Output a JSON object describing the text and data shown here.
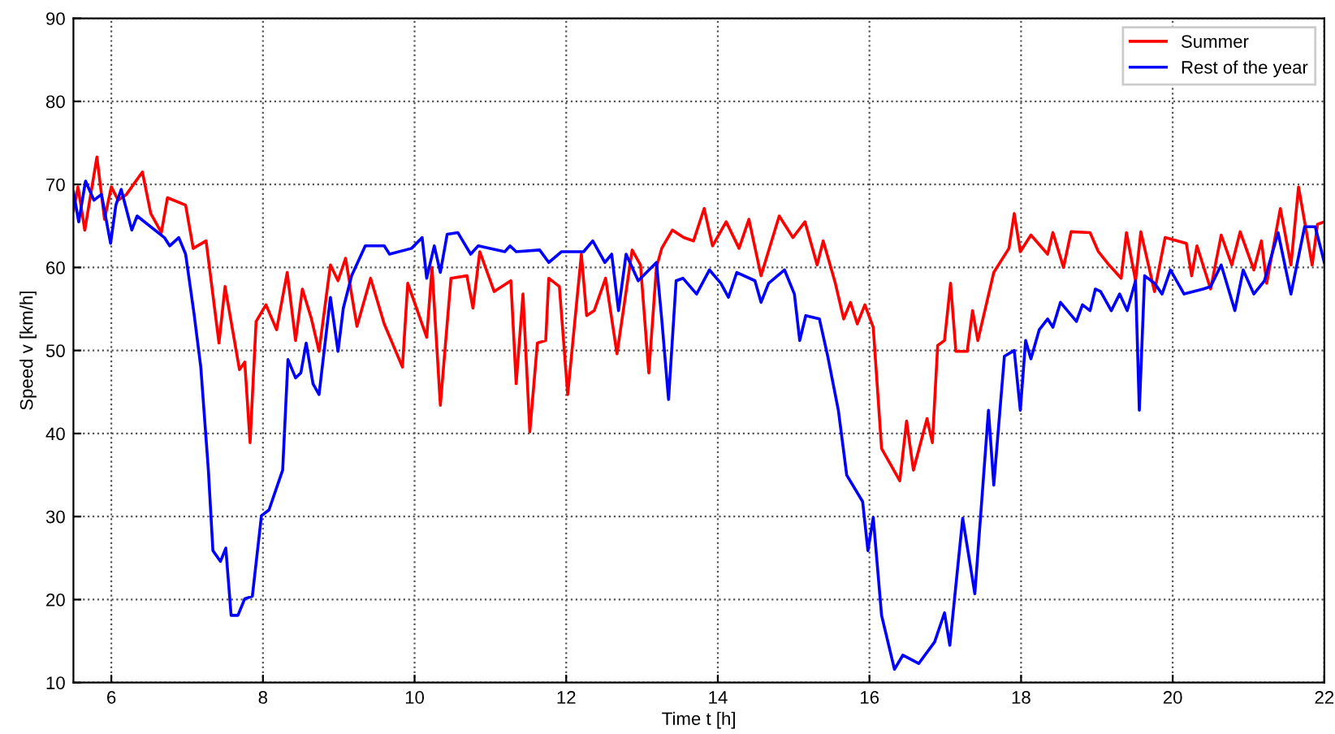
{
  "chart_data": {
    "type": "line",
    "xlabel": "Time t [h]",
    "ylabel": "Speed v [km/h]",
    "xlim": [
      5.5,
      22
    ],
    "xticks": [
      6,
      8,
      10,
      12,
      14,
      16,
      18,
      20,
      22
    ],
    "ylim": [
      10,
      90
    ],
    "yticks": [
      10,
      20,
      30,
      40,
      50,
      60,
      70,
      80,
      90
    ],
    "grid": true,
    "legend": "top right",
    "line_style": "solid",
    "series": [
      {
        "name": "Summer",
        "color": "#ff0000",
        "x": [
          5.5,
          5.56,
          5.65,
          5.81,
          5.91,
          6.0,
          6.09,
          6.2,
          6.41,
          6.52,
          6.66,
          6.74,
          6.98,
          7.08,
          7.25,
          7.42,
          7.5,
          7.69,
          7.76,
          7.83,
          7.91,
          8.04,
          8.18,
          8.32,
          8.43,
          8.52,
          8.64,
          8.74,
          8.89,
          8.99,
          9.09,
          9.24,
          9.42,
          9.6,
          9.84,
          9.91,
          10.16,
          10.23,
          10.34,
          10.48,
          10.69,
          10.77,
          10.86,
          11.05,
          11.27,
          11.34,
          11.43,
          11.52,
          11.62,
          11.73,
          11.77,
          11.91,
          12.02,
          12.2,
          12.27,
          12.37,
          12.52,
          12.67,
          12.87,
          12.98,
          13.09,
          13.19,
          13.26,
          13.4,
          13.55,
          13.68,
          13.82,
          13.93,
          14.11,
          14.28,
          14.41,
          14.57,
          14.81,
          14.99,
          15.15,
          15.31,
          15.39,
          15.55,
          15.66,
          15.75,
          15.84,
          15.94,
          16.05,
          16.16,
          16.4,
          16.49,
          16.58,
          16.76,
          16.83,
          16.9,
          16.99,
          17.07,
          17.14,
          17.29,
          17.36,
          17.43,
          17.64,
          17.84,
          17.91,
          17.99,
          18.13,
          18.35,
          18.42,
          18.56,
          18.66,
          18.91,
          19.02,
          19.16,
          19.32,
          19.39,
          19.51,
          19.58,
          19.76,
          19.9,
          20.18,
          20.25,
          20.32,
          20.5,
          20.64,
          20.78,
          20.89,
          21.07,
          21.17,
          21.24,
          21.42,
          21.56,
          21.66,
          21.84,
          21.91,
          22.0
        ],
        "values": [
          66.8,
          69.7,
          64.5,
          73.3,
          65.8,
          69.7,
          68.1,
          68.8,
          71.5,
          66.5,
          64.2,
          68.4,
          67.5,
          62.3,
          63.2,
          50.9,
          57.7,
          47.7,
          48.6,
          38.9,
          53.5,
          55.5,
          52.5,
          59.4,
          51.2,
          57.4,
          53.8,
          49.9,
          60.3,
          58.4,
          61.1,
          52.9,
          58.7,
          53.2,
          48.0,
          58.1,
          51.6,
          60.0,
          43.4,
          58.7,
          59.0,
          55.1,
          61.9,
          57.1,
          58.4,
          46.0,
          56.8,
          40.2,
          50.9,
          51.2,
          58.7,
          57.7,
          44.7,
          61.6,
          54.2,
          54.8,
          58.7,
          49.6,
          62.1,
          60.3,
          47.3,
          60.0,
          62.3,
          64.5,
          63.6,
          63.2,
          67.1,
          62.6,
          65.5,
          62.3,
          65.8,
          59.0,
          66.2,
          63.6,
          65.5,
          60.3,
          63.2,
          58.1,
          53.8,
          55.8,
          53.2,
          55.5,
          52.8,
          38.2,
          34.3,
          41.5,
          35.6,
          41.8,
          38.9,
          50.6,
          51.2,
          58.1,
          49.9,
          49.9,
          54.8,
          51.2,
          59.4,
          62.3,
          66.5,
          61.9,
          63.9,
          61.6,
          64.2,
          60.0,
          64.3,
          64.2,
          61.9,
          60.3,
          58.7,
          64.2,
          58.4,
          64.3,
          57.1,
          63.6,
          62.9,
          59.0,
          62.6,
          57.4,
          63.9,
          60.3,
          64.3,
          59.7,
          63.2,
          58.1,
          67.1,
          60.3,
          69.7,
          60.3,
          65.2,
          65.5
        ]
      },
      {
        "name": "Rest of the year",
        "color": "#0000ff",
        "x": [
          5.5,
          5.57,
          5.66,
          5.77,
          5.87,
          5.99,
          6.06,
          6.13,
          6.27,
          6.34,
          6.7,
          6.77,
          6.89,
          6.98,
          7.09,
          7.18,
          7.28,
          7.34,
          7.44,
          7.51,
          7.58,
          7.67,
          7.76,
          7.86,
          7.98,
          8.08,
          8.26,
          8.33,
          8.43,
          8.5,
          8.57,
          8.66,
          8.74,
          8.89,
          8.99,
          9.06,
          9.17,
          9.35,
          9.6,
          9.67,
          9.96,
          10.1,
          10.16,
          10.26,
          10.34,
          10.43,
          10.57,
          10.74,
          10.84,
          11.19,
          11.26,
          11.34,
          11.65,
          11.77,
          11.94,
          12.23,
          12.35,
          12.51,
          12.6,
          12.69,
          12.79,
          12.95,
          13.19,
          13.26,
          13.35,
          13.45,
          13.54,
          13.72,
          13.89,
          14.04,
          14.14,
          14.25,
          14.49,
          14.57,
          14.67,
          14.88,
          15.01,
          15.08,
          15.16,
          15.34,
          15.45,
          15.59,
          15.7,
          15.91,
          15.98,
          16.05,
          16.16,
          16.33,
          16.44,
          16.65,
          16.86,
          16.99,
          17.06,
          17.23,
          17.39,
          17.57,
          17.64,
          17.78,
          17.91,
          17.99,
          18.06,
          18.13,
          18.24,
          18.35,
          18.42,
          18.52,
          18.73,
          18.81,
          18.91,
          18.98,
          19.05,
          19.19,
          19.3,
          19.4,
          19.51,
          19.56,
          19.63,
          19.76,
          19.86,
          19.97,
          20.15,
          20.4,
          20.5,
          20.64,
          20.82,
          20.93,
          21.07,
          21.21,
          21.39,
          21.56,
          21.74,
          21.88,
          22.0
        ],
        "values": [
          69.1,
          65.5,
          70.4,
          68.1,
          68.8,
          62.9,
          67.5,
          69.4,
          64.5,
          66.2,
          63.6,
          62.6,
          63.6,
          61.6,
          54.5,
          48.0,
          35.6,
          25.9,
          24.6,
          26.2,
          18.1,
          18.1,
          20.1,
          20.4,
          30.1,
          30.8,
          35.6,
          48.9,
          46.7,
          47.3,
          50.9,
          46.0,
          44.7,
          56.4,
          49.9,
          55.1,
          59.0,
          62.6,
          62.6,
          61.6,
          62.3,
          63.6,
          58.7,
          62.6,
          59.4,
          64.0,
          64.2,
          61.6,
          62.6,
          61.9,
          62.6,
          61.9,
          62.1,
          60.6,
          61.9,
          61.9,
          63.2,
          60.6,
          61.6,
          54.8,
          61.6,
          58.4,
          60.6,
          53.8,
          44.1,
          58.4,
          58.7,
          56.8,
          59.7,
          58.1,
          56.4,
          59.4,
          58.4,
          55.8,
          58.1,
          59.7,
          56.8,
          51.2,
          54.2,
          53.8,
          49.3,
          42.8,
          35.0,
          31.8,
          25.9,
          29.9,
          18.1,
          11.6,
          13.3,
          12.3,
          14.9,
          18.4,
          14.5,
          29.8,
          20.7,
          42.8,
          33.8,
          49.3,
          50.0,
          42.8,
          51.2,
          49.0,
          52.5,
          53.8,
          52.8,
          55.8,
          53.5,
          55.5,
          54.8,
          57.4,
          57.1,
          54.8,
          56.8,
          54.8,
          58.4,
          42.8,
          59.0,
          58.1,
          56.8,
          59.7,
          56.8,
          57.4,
          57.7,
          60.3,
          54.8,
          59.7,
          56.8,
          58.4,
          64.2,
          56.8,
          64.9,
          64.9,
          60.6
        ]
      }
    ]
  }
}
